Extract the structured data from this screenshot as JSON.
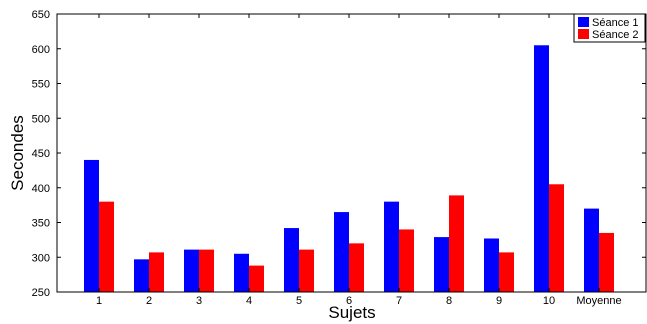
{
  "chart_data": {
    "type": "bar",
    "xlabel": "Sujets",
    "ylabel": "Secondes",
    "ylim": [
      250,
      650
    ],
    "yticks": [
      250,
      300,
      350,
      400,
      450,
      500,
      550,
      600,
      650
    ],
    "categories": [
      "1",
      "2",
      "3",
      "4",
      "5",
      "6",
      "7",
      "8",
      "9",
      "10",
      "Moyenne"
    ],
    "series": [
      {
        "name": "Séance 1",
        "color": "#0000ff",
        "values": [
          440,
          297,
          311,
          305,
          342,
          365,
          380,
          329,
          327,
          605,
          370
        ]
      },
      {
        "name": "Séance 2",
        "color": "#ff0000",
        "values": [
          380,
          307,
          311,
          288,
          311,
          320,
          340,
          389,
          307,
          405,
          335
        ]
      }
    ],
    "grid": false,
    "legend": "top-right"
  }
}
